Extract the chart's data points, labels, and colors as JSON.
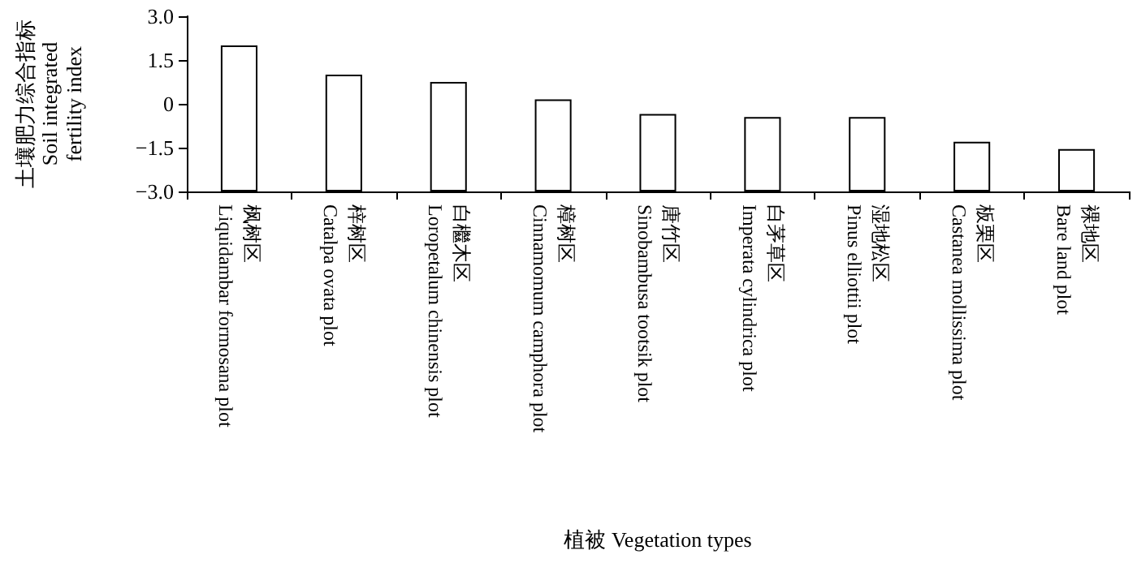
{
  "chart_data": {
    "type": "bar",
    "categories": [
      "枫树区\nLiquidambar formosana plot",
      "梓树区\nCatalpa ovata plot",
      "白檵木区\nLoropetalum chinensis plot",
      "樟树区\nCinnamomum camphora plot",
      "唐竹区\nSinobambusa tootsik plot",
      "白茅草区\nImperata cylindrica plot",
      "湿地松区\nPinus elliottii plot",
      "板栗区\nCastanea mollissima plot",
      "裸地区\nBare land plot"
    ],
    "base": [
      -3,
      -3,
      -3,
      -3,
      -3,
      -3,
      -3,
      -3,
      -3
    ],
    "values": [
      5.0,
      4.0,
      3.75,
      3.15,
      2.65,
      2.55,
      2.55,
      1.7,
      1.45
    ],
    "color": "#ffffff",
    "xlabel": "植被 Vegetation types",
    "ylabel": "土壤肥力综合指标\nSoil integrated\nfertility index",
    "ylim": [
      -3.0,
      3.0
    ],
    "yticks": [
      {
        "value": -3,
        "label": "−3.0"
      },
      {
        "value": -1.5,
        "label": "−1.5"
      },
      0,
      {
        "value": 1.5,
        "label": "1.5"
      },
      {
        "value": 3,
        "label": "3.0"
      }
    ],
    "grid": false
  }
}
